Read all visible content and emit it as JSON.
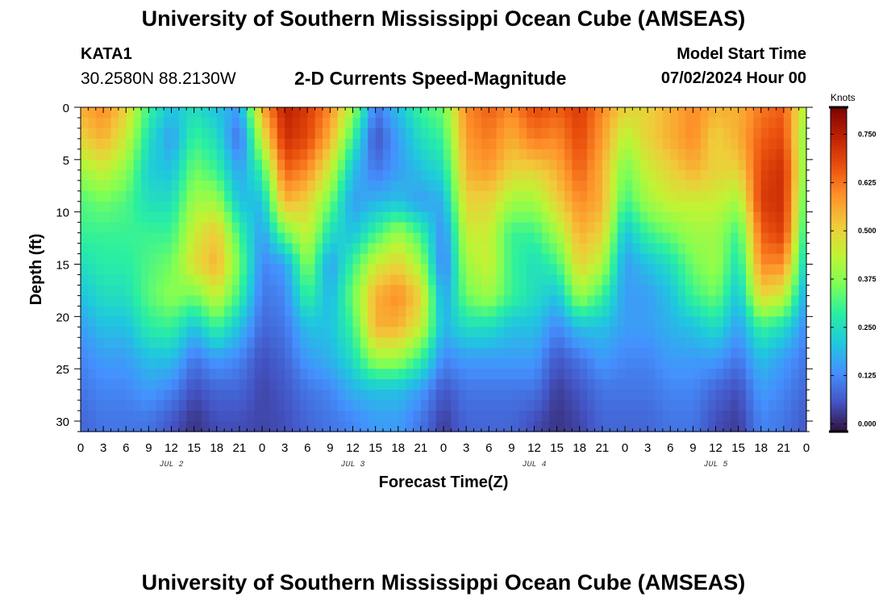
{
  "header": {
    "main_title": "University of Southern Mississippi Ocean Cube (AMSEAS)",
    "station_id": "KATA1",
    "station_coords": "30.2580N  88.2130W",
    "subtitle": "2-D Currents Speed-Magnitude",
    "model_start_label": "Model Start Time",
    "model_start_value": "07/02/2024 Hour 00"
  },
  "footer": {
    "title": "University of Southern Mississippi Ocean Cube (AMSEAS)"
  },
  "colors": {
    "colormap": [
      "#30123b",
      "#4454c4",
      "#4490fe",
      "#1fc8de",
      "#29efa2",
      "#7dff56",
      "#c1f334",
      "#f1ca3a",
      "#fe922a",
      "#ea4f0d",
      "#be2102",
      "#7a0403"
    ]
  },
  "chart_data": {
    "type": "heatmap",
    "title": "2-D Currents Speed-Magnitude",
    "xlabel": "Forecast Time(Z)",
    "ylabel": "Depth (ft)",
    "x_range_hours": [
      0,
      96
    ],
    "ylim": [
      31,
      0
    ],
    "x_tick_labels": [
      "0",
      "3",
      "6",
      "9",
      "12",
      "15",
      "18",
      "21",
      "0",
      "3",
      "6",
      "9",
      "12",
      "15",
      "18",
      "21",
      "0",
      "3",
      "6",
      "9",
      "12",
      "15",
      "18",
      "21",
      "0",
      "3",
      "6",
      "9",
      "12",
      "15",
      "18",
      "21",
      "0"
    ],
    "day_labels": [
      {
        "label": "JUL 2",
        "hour": 12
      },
      {
        "label": "JUL 3",
        "hour": 36
      },
      {
        "label": "JUL 4",
        "hour": 60
      },
      {
        "label": "JUL 5",
        "hour": 84
      }
    ],
    "y_ticks": [
      0,
      5,
      10,
      15,
      20,
      25,
      30
    ],
    "y_tick_labels": [
      "0",
      "5",
      "10",
      "15",
      "20",
      "25",
      "30"
    ],
    "colorbar": {
      "title": "Knots",
      "range": [
        -0.02,
        0.82
      ],
      "ticks": [
        0.0,
        0.125,
        0.25,
        0.375,
        0.5,
        0.625,
        0.75
      ],
      "tick_labels": [
        "0.000",
        "0.125",
        "0.250",
        "0.375",
        "0.500",
        "0.625",
        "0.750"
      ]
    },
    "depths_ft": [
      0,
      3,
      6,
      9,
      12,
      15,
      18,
      21,
      24,
      27,
      30
    ],
    "profile_hours": [
      0,
      3,
      6,
      9,
      12,
      15,
      18,
      21,
      24,
      27,
      30,
      33,
      36,
      39,
      42,
      45,
      48,
      51,
      54,
      57,
      60,
      63,
      66,
      69,
      72,
      75,
      78,
      81,
      84,
      87,
      90,
      93,
      96
    ],
    "speed_profiles": [
      [
        0.55,
        0.5,
        0.4,
        0.32,
        0.3,
        0.25,
        0.2,
        0.15,
        0.12,
        0.1,
        0.08
      ],
      [
        0.6,
        0.55,
        0.45,
        0.35,
        0.3,
        0.28,
        0.25,
        0.2,
        0.15,
        0.12,
        0.1
      ],
      [
        0.5,
        0.45,
        0.38,
        0.32,
        0.3,
        0.28,
        0.25,
        0.2,
        0.15,
        0.12,
        0.1
      ],
      [
        0.3,
        0.25,
        0.22,
        0.25,
        0.3,
        0.32,
        0.33,
        0.28,
        0.2,
        0.15,
        0.1
      ],
      [
        0.2,
        0.15,
        0.2,
        0.25,
        0.3,
        0.35,
        0.38,
        0.3,
        0.2,
        0.12,
        0.06
      ],
      [
        0.25,
        0.3,
        0.35,
        0.4,
        0.45,
        0.48,
        0.35,
        0.2,
        0.1,
        0.05,
        0.02
      ],
      [
        0.2,
        0.25,
        0.3,
        0.4,
        0.52,
        0.55,
        0.45,
        0.3,
        0.15,
        0.08,
        0.05
      ],
      [
        0.15,
        0.08,
        0.15,
        0.2,
        0.3,
        0.35,
        0.3,
        0.2,
        0.12,
        0.08,
        0.05
      ],
      [
        0.55,
        0.45,
        0.3,
        0.2,
        0.15,
        0.12,
        0.1,
        0.08,
        0.05,
        0.04,
        0.04
      ],
      [
        0.75,
        0.72,
        0.65,
        0.55,
        0.35,
        0.15,
        0.12,
        0.1,
        0.08,
        0.06,
        0.05
      ],
      [
        0.7,
        0.68,
        0.6,
        0.5,
        0.45,
        0.38,
        0.3,
        0.2,
        0.15,
        0.1,
        0.08
      ],
      [
        0.6,
        0.55,
        0.45,
        0.35,
        0.25,
        0.15,
        0.18,
        0.2,
        0.18,
        0.12,
        0.1
      ],
      [
        0.4,
        0.3,
        0.2,
        0.15,
        0.2,
        0.3,
        0.35,
        0.3,
        0.25,
        0.18,
        0.12
      ],
      [
        0.1,
        0.05,
        0.1,
        0.18,
        0.3,
        0.45,
        0.55,
        0.55,
        0.4,
        0.2,
        0.15
      ],
      [
        0.2,
        0.15,
        0.15,
        0.2,
        0.4,
        0.5,
        0.6,
        0.55,
        0.4,
        0.2,
        0.15
      ],
      [
        0.3,
        0.25,
        0.2,
        0.15,
        0.3,
        0.4,
        0.5,
        0.45,
        0.3,
        0.15,
        0.1
      ],
      [
        0.35,
        0.3,
        0.25,
        0.18,
        0.12,
        0.1,
        0.15,
        0.18,
        0.12,
        0.06,
        0.03
      ],
      [
        0.6,
        0.58,
        0.55,
        0.5,
        0.45,
        0.4,
        0.35,
        0.25,
        0.15,
        0.1,
        0.08
      ],
      [
        0.65,
        0.62,
        0.58,
        0.5,
        0.45,
        0.45,
        0.4,
        0.25,
        0.15,
        0.1,
        0.08
      ],
      [
        0.6,
        0.55,
        0.5,
        0.4,
        0.3,
        0.3,
        0.3,
        0.2,
        0.15,
        0.1,
        0.08
      ],
      [
        0.68,
        0.62,
        0.5,
        0.4,
        0.3,
        0.25,
        0.25,
        0.2,
        0.15,
        0.1,
        0.05
      ],
      [
        0.65,
        0.6,
        0.55,
        0.5,
        0.4,
        0.3,
        0.2,
        0.12,
        0.06,
        0.03,
        0.02
      ],
      [
        0.7,
        0.68,
        0.65,
        0.6,
        0.55,
        0.5,
        0.4,
        0.2,
        0.1,
        0.06,
        0.04
      ],
      [
        0.6,
        0.58,
        0.55,
        0.55,
        0.5,
        0.42,
        0.3,
        0.2,
        0.15,
        0.1,
        0.08
      ],
      [
        0.5,
        0.42,
        0.35,
        0.3,
        0.2,
        0.15,
        0.15,
        0.15,
        0.12,
        0.1,
        0.08
      ],
      [
        0.5,
        0.5,
        0.45,
        0.4,
        0.3,
        0.2,
        0.15,
        0.15,
        0.12,
        0.1,
        0.08
      ],
      [
        0.55,
        0.55,
        0.5,
        0.45,
        0.35,
        0.25,
        0.2,
        0.18,
        0.15,
        0.12,
        0.1
      ],
      [
        0.6,
        0.6,
        0.55,
        0.45,
        0.4,
        0.35,
        0.3,
        0.2,
        0.15,
        0.12,
        0.1
      ],
      [
        0.55,
        0.5,
        0.5,
        0.45,
        0.4,
        0.4,
        0.35,
        0.25,
        0.15,
        0.08,
        0.05
      ],
      [
        0.55,
        0.55,
        0.5,
        0.4,
        0.3,
        0.25,
        0.2,
        0.15,
        0.1,
        0.05,
        0.03
      ],
      [
        0.62,
        0.65,
        0.68,
        0.7,
        0.65,
        0.6,
        0.5,
        0.3,
        0.2,
        0.15,
        0.12
      ],
      [
        0.65,
        0.68,
        0.72,
        0.72,
        0.7,
        0.6,
        0.45,
        0.25,
        0.15,
        0.12,
        0.1
      ],
      [
        0.4,
        0.35,
        0.35,
        0.3,
        0.25,
        0.2,
        0.15,
        0.12,
        0.1,
        0.08,
        0.06
      ]
    ]
  }
}
